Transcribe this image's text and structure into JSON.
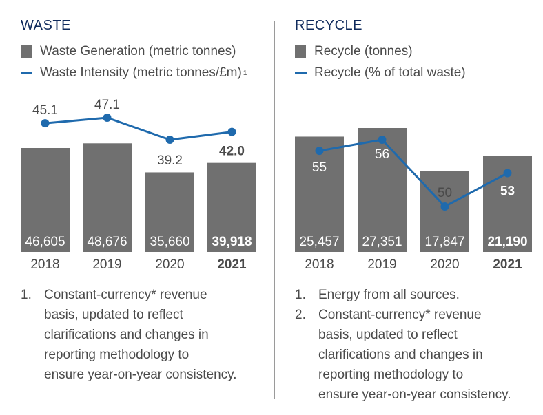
{
  "waste": {
    "title": "WASTE",
    "legend_bar": "Waste Generation (metric tonnes)",
    "legend_line": "Waste Intensity (metric tonnes/£m)",
    "legend_line_sup": "1",
    "notes": [
      {
        "num": "1.",
        "lines": [
          "Constant-currency* revenue",
          "basis, updated to reflect",
          "clarifications and changes in",
          "reporting methodology to",
          "ensure year-on-year consistency."
        ]
      }
    ]
  },
  "recycle": {
    "title": "RECYCLE",
    "legend_bar": "Recycle (tonnes)",
    "legend_line": "Recycle (% of total waste)",
    "notes": [
      {
        "num": "1.",
        "lines": [
          "Energy from all sources."
        ]
      },
      {
        "num": "2.",
        "lines": [
          "Constant-currency* revenue",
          "basis, updated to reflect",
          "clarifications and changes in",
          "reporting methodology to",
          "ensure year-on-year consistency."
        ]
      }
    ]
  },
  "colors": {
    "bar": "#707070",
    "line": "#1f6aad",
    "title": "#0f2a5c",
    "text": "#4a4a4a"
  },
  "chart_data": [
    {
      "type": "bar",
      "categories": [
        "2018",
        "2019",
        "2020",
        "2021"
      ],
      "series": [
        {
          "name": "Waste Generation (metric tonnes)",
          "type": "bar",
          "values": [
            46605,
            48676,
            35660,
            39918
          ],
          "labels": [
            "46,605",
            "48,676",
            "35,660",
            "39,918"
          ]
        },
        {
          "name": "Waste Intensity (metric tonnes/£m)",
          "type": "line",
          "values": [
            45.1,
            47.1,
            39.2,
            42.0
          ],
          "labels": [
            "45.1",
            "47.1",
            "39.2",
            "42.0"
          ]
        }
      ],
      "bold_category": "2021"
    },
    {
      "type": "bar",
      "categories": [
        "2018",
        "2019",
        "2020",
        "2021"
      ],
      "series": [
        {
          "name": "Recycle (tonnes)",
          "type": "bar",
          "values": [
            25457,
            27351,
            17847,
            21190
          ],
          "labels": [
            "25,457",
            "27,351",
            "17,847",
            "21,190"
          ]
        },
        {
          "name": "Recycle (% of total waste)",
          "type": "line",
          "values": [
            55,
            56,
            50,
            53
          ],
          "labels": [
            "55",
            "56",
            "50",
            "53"
          ]
        }
      ],
      "bold_category": "2021"
    }
  ]
}
